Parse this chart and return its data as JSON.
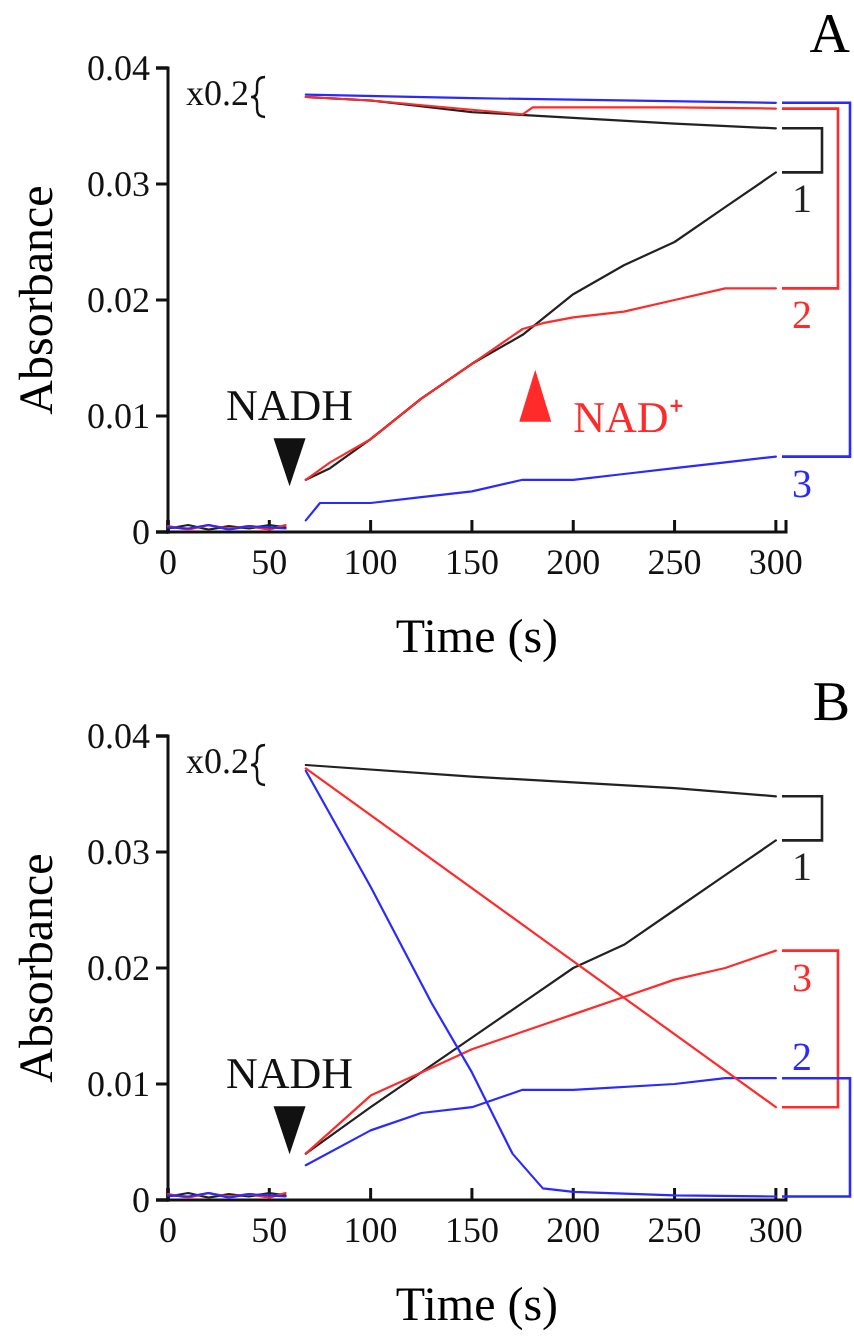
{
  "chart_data": [
    {
      "type": "line",
      "title": "A",
      "xlabel": "Time (s)",
      "ylabel": "Absorbance",
      "xlim": [
        0,
        305
      ],
      "xticks": [
        0,
        50,
        100,
        150,
        200,
        250,
        300
      ],
      "ylim": [
        0,
        0.04
      ],
      "yticks": [
        0,
        0.01,
        0.02,
        0.03,
        0.04
      ],
      "series": [
        {
          "name": "1",
          "color": "#222222",
          "x": [
            0,
            10,
            20,
            30,
            40,
            50,
            58,
            63,
            68,
            80,
            100,
            125,
            150,
            175,
            200,
            225,
            250,
            275,
            300
          ],
          "values": [
            0.0003,
            0.0006,
            0.0002,
            0.0005,
            0.0003,
            0.0006,
            0.0004,
            null,
            0.0045,
            0.0055,
            0.008,
            0.0115,
            0.0145,
            0.017,
            0.0205,
            0.023,
            0.025,
            0.028,
            0.031
          ]
        },
        {
          "name": "2",
          "color": "#ff2a2a",
          "x": [
            0,
            10,
            20,
            30,
            40,
            50,
            58,
            63,
            68,
            80,
            100,
            125,
            150,
            175,
            185,
            200,
            225,
            250,
            275,
            300
          ],
          "values": [
            0.0005,
            0.0002,
            0.0006,
            0.0003,
            0.0005,
            0.0002,
            0.0006,
            null,
            0.0045,
            0.006,
            0.008,
            0.0115,
            0.0145,
            0.0175,
            0.018,
            0.0185,
            0.019,
            0.02,
            0.021,
            0.021
          ]
        },
        {
          "name": "3",
          "color": "#2a2aff",
          "x": [
            0,
            10,
            20,
            30,
            40,
            50,
            58,
            63,
            68,
            75,
            100,
            125,
            150,
            175,
            200,
            225,
            250,
            275,
            300
          ],
          "values": [
            0.0004,
            0.0003,
            0.0006,
            0.0002,
            0.0005,
            0.0004,
            0.0003,
            null,
            0.001,
            0.0025,
            0.0025,
            0.003,
            0.0035,
            0.0045,
            0.0045,
            0.005,
            0.0055,
            0.006,
            0.0065
          ]
        },
        {
          "color": "#222222",
          "x": [
            68,
            100,
            150,
            200,
            250,
            300
          ],
          "values": [
            0.0375,
            0.0372,
            0.0362,
            0.0357,
            0.0352,
            0.0348
          ]
        },
        {
          "color": "#ff2a2a",
          "x": [
            68,
            100,
            150,
            175,
            180,
            250,
            300
          ],
          "values": [
            0.0375,
            0.0372,
            0.0364,
            0.036,
            0.0366,
            0.0366,
            0.0365
          ]
        },
        {
          "color": "#2a2aff",
          "x": [
            68,
            150,
            300
          ],
          "values": [
            0.0377,
            0.0374,
            0.037
          ]
        }
      ],
      "annotations": [
        "x0.2",
        "NADH",
        "NAD⁺"
      ]
    },
    {
      "type": "line",
      "title": "B",
      "xlabel": "Time (s)",
      "ylabel": "Absorbance",
      "xlim": [
        0,
        305
      ],
      "xticks": [
        0,
        50,
        100,
        150,
        200,
        250,
        300
      ],
      "ylim": [
        0,
        0.04
      ],
      "yticks": [
        0,
        0.01,
        0.02,
        0.03,
        0.04
      ],
      "series": [
        {
          "name": "1",
          "color": "#222222",
          "x": [
            0,
            10,
            20,
            30,
            40,
            50,
            58,
            63,
            68,
            100,
            125,
            150,
            175,
            200,
            225,
            250,
            275,
            300
          ],
          "values": [
            0.0003,
            0.0006,
            0.0002,
            0.0005,
            0.0003,
            0.0006,
            0.0004,
            null,
            0.004,
            0.008,
            0.011,
            0.014,
            0.017,
            0.02,
            0.022,
            0.025,
            0.028,
            0.031
          ]
        },
        {
          "name": "3",
          "color": "#ff2a2a",
          "x": [
            0,
            10,
            20,
            30,
            40,
            50,
            58,
            63,
            68,
            100,
            125,
            150,
            175,
            200,
            225,
            250,
            275,
            300
          ],
          "values": [
            0.0005,
            0.0002,
            0.0006,
            0.0003,
            0.0005,
            0.0002,
            0.0006,
            null,
            0.004,
            0.009,
            0.011,
            0.013,
            0.0145,
            0.016,
            0.0175,
            0.019,
            0.02,
            0.0215
          ]
        },
        {
          "name": "2",
          "color": "#2a2aff",
          "x": [
            0,
            10,
            20,
            30,
            40,
            50,
            58,
            63,
            68,
            100,
            125,
            150,
            175,
            200,
            250,
            275,
            300
          ],
          "values": [
            0.0004,
            0.0003,
            0.0006,
            0.0002,
            0.0005,
            0.0004,
            0.0003,
            null,
            0.003,
            0.006,
            0.0075,
            0.008,
            0.0095,
            0.0095,
            0.01,
            0.0105,
            0.0105
          ]
        },
        {
          "color": "#222222",
          "x": [
            68,
            150,
            200,
            250,
            300
          ],
          "values": [
            0.0375,
            0.0365,
            0.036,
            0.0355,
            0.0348
          ]
        },
        {
          "color": "#ff2a2a",
          "x": [
            68,
            184,
            300
          ],
          "values": [
            0.0372,
            0.0226,
            0.008
          ]
        },
        {
          "color": "#2a2aff",
          "x": [
            68,
            100,
            130,
            150,
            170,
            185,
            200,
            250,
            300
          ],
          "values": [
            0.037,
            0.027,
            0.017,
            0.011,
            0.004,
            0.001,
            0.0007,
            0.0004,
            0.0003
          ]
        }
      ],
      "annotations": [
        "x0.2",
        "NADH"
      ]
    }
  ]
}
